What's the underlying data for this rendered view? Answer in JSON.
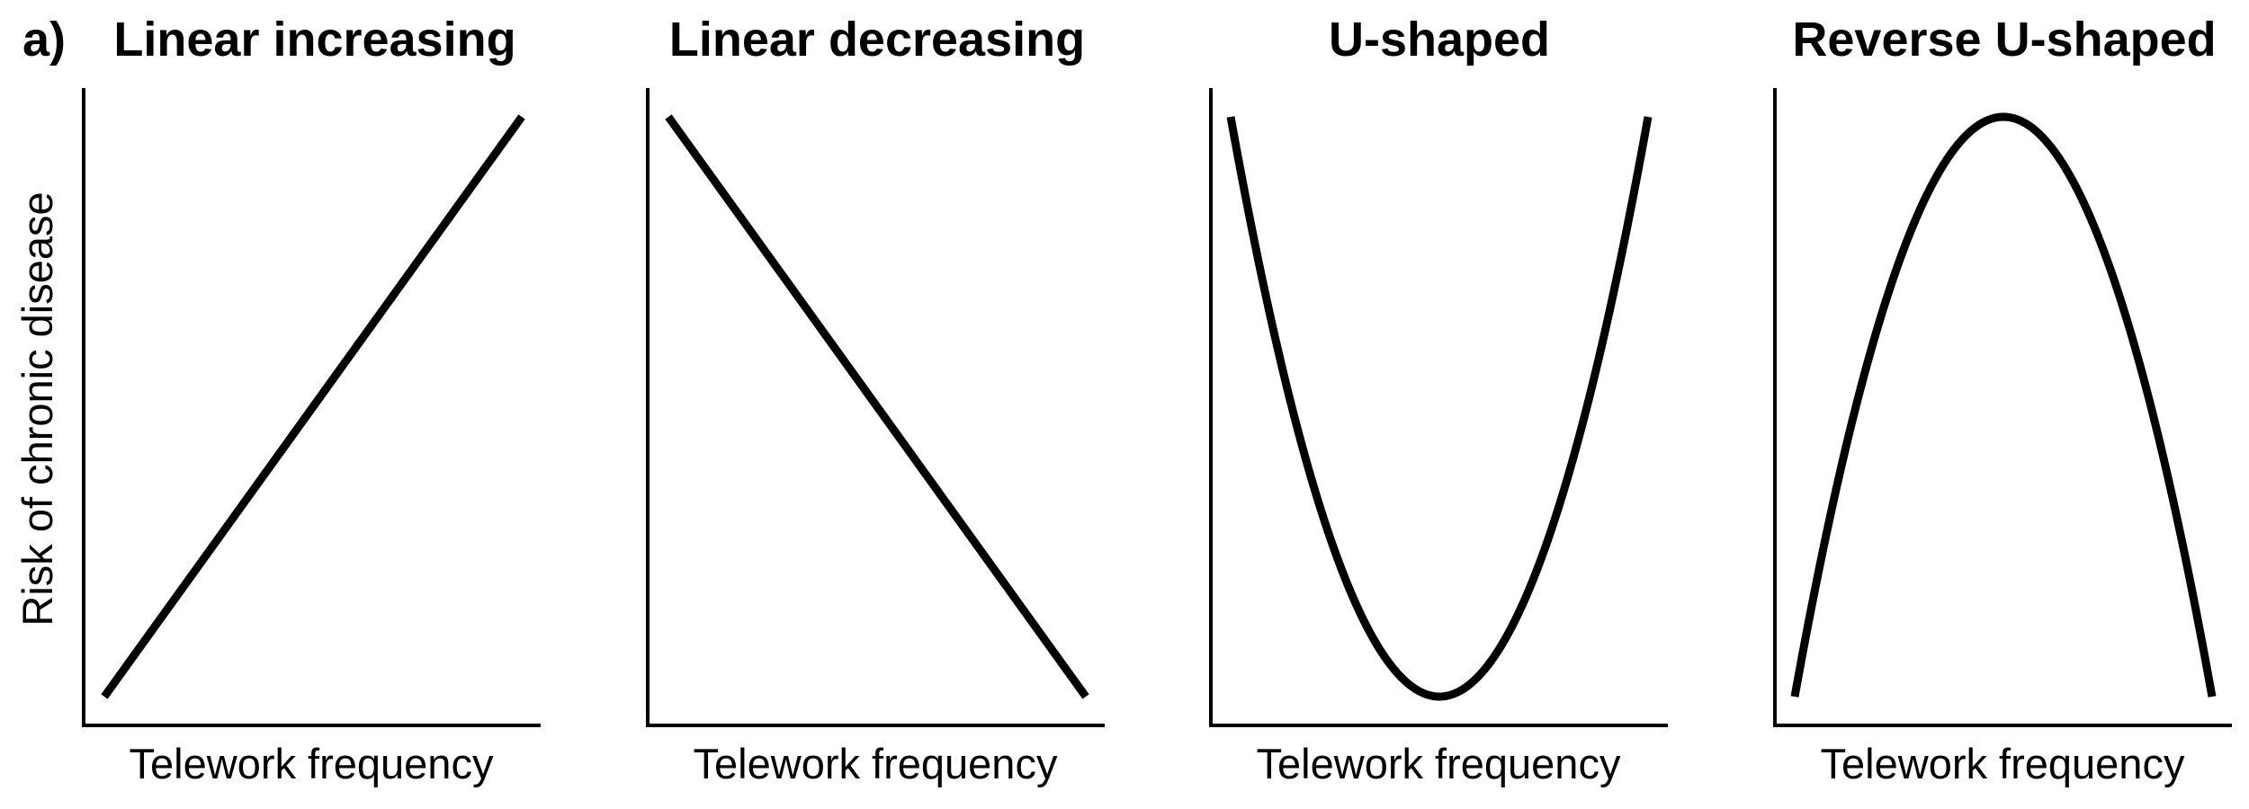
{
  "figure": {
    "panel_letter": "a)"
  },
  "chart_data": [
    {
      "type": "line",
      "title": "Linear increasing",
      "xlabel": "Telework frequency",
      "ylabel": "Risk of chronic disease",
      "xlim": [
        0,
        1
      ],
      "ylim": [
        0,
        1
      ],
      "series": [
        {
          "name": "Linear increasing",
          "x": [
            0,
            1
          ],
          "y": [
            0,
            1
          ]
        }
      ]
    },
    {
      "type": "line",
      "title": "Linear decreasing",
      "xlabel": "Telework frequency",
      "ylabel": "",
      "xlim": [
        0,
        1
      ],
      "ylim": [
        0,
        1
      ],
      "series": [
        {
          "name": "Linear decreasing",
          "x": [
            0,
            1
          ],
          "y": [
            1,
            0
          ]
        }
      ]
    },
    {
      "type": "line",
      "title": "U-shaped",
      "xlabel": "Telework frequency",
      "ylabel": "",
      "xlim": [
        0,
        1
      ],
      "ylim": [
        0,
        1
      ],
      "series": [
        {
          "name": "U-shaped",
          "x": [
            0,
            0.25,
            0.5,
            0.75,
            1
          ],
          "y": [
            1,
            0.25,
            0,
            0.25,
            1
          ]
        }
      ]
    },
    {
      "type": "line",
      "title": "Reverse U-shaped",
      "xlabel": "Telework frequency",
      "ylabel": "",
      "xlim": [
        0,
        1
      ],
      "ylim": [
        0,
        1
      ],
      "series": [
        {
          "name": "Reverse U-shaped",
          "x": [
            0,
            0.25,
            0.5,
            0.75,
            1
          ],
          "y": [
            0,
            0.75,
            1,
            0.75,
            0
          ]
        }
      ]
    }
  ]
}
